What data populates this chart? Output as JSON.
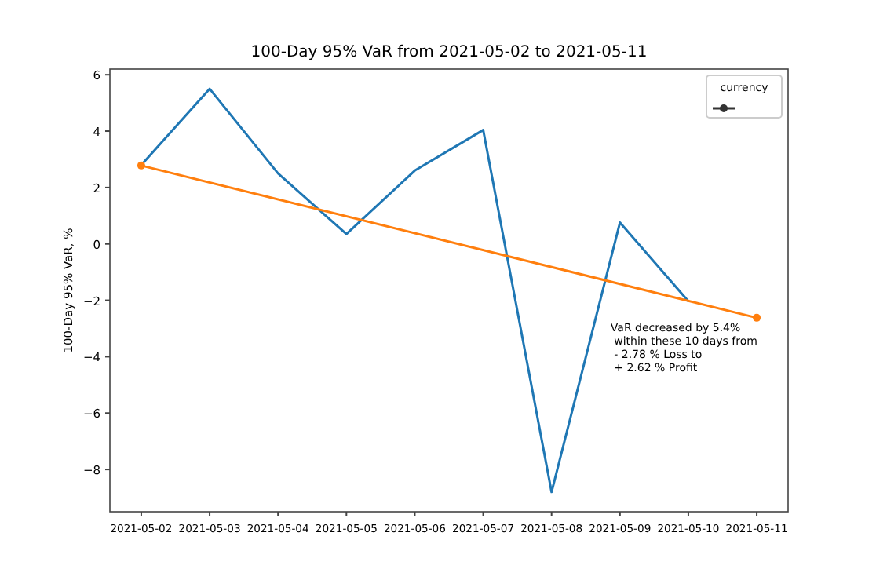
{
  "chart_data": {
    "type": "line",
    "title": "100-Day 95% VaR from 2021-05-02 to 2021-05-11",
    "ylabel": "100-Day 95% VaR, %",
    "legend_title": "currency",
    "grid": false,
    "x": [
      "2021-05-02",
      "2021-05-03",
      "2021-05-04",
      "2021-05-05",
      "2021-05-06",
      "2021-05-07",
      "2021-05-08",
      "2021-05-09",
      "2021-05-10"
    ],
    "series": [
      {
        "color": "#1f77b4",
        "values": [
          2.8,
          5.5,
          2.5,
          0.35,
          2.6,
          4.04,
          -8.8,
          0.76,
          -2.03
        ],
        "marker": "none"
      },
      {
        "type": "line",
        "color": "#ff7f0e",
        "x": [
          "2021-05-02",
          "2021-05-11"
        ],
        "values": [
          2.78,
          -2.62
        ],
        "marker": "circle"
      }
    ],
    "xlim": [
      "2021-05-01T13:00",
      "2021-05-11T11:00"
    ],
    "xticks": [
      "2021-05-02",
      "2021-05-03",
      "2021-05-04",
      "2021-05-05",
      "2021-05-06",
      "2021-05-07",
      "2021-05-08",
      "2021-05-09",
      "2021-05-10",
      "2021-05-11"
    ],
    "ylim": [
      -9.5,
      6.2
    ],
    "yticks": [
      {
        "value": -8,
        "label": "−8"
      },
      {
        "value": -6,
        "label": "−6"
      },
      {
        "value": -4,
        "label": "−4"
      },
      {
        "value": -2,
        "label": "−2"
      },
      0,
      2,
      4,
      6
    ],
    "annotations": [
      "VaR decreased by 5.4%\n within these 10 days from\n - 2.78 % Loss to\n + 2.62 % Profit"
    ]
  }
}
